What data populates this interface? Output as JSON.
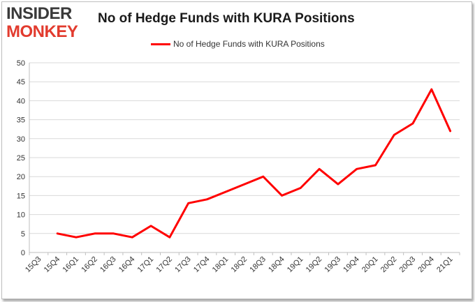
{
  "logo": {
    "line1": "INSIDER",
    "line2": "MONKEY"
  },
  "colors": {
    "line": "#ff0000",
    "grid": "#d9d9d9",
    "axis": "#bfbfbf",
    "logo_accent": "#e23b2e"
  },
  "chart_data": {
    "type": "line",
    "title": "No of Hedge Funds with KURA Positions",
    "xlabel": "",
    "ylabel": "",
    "categories": [
      "15Q3",
      "15Q4",
      "16Q1",
      "16Q2",
      "16Q3",
      "16Q4",
      "17Q1",
      "17Q2",
      "17Q3",
      "17Q4",
      "18Q1",
      "18Q2",
      "18Q3",
      "18Q4",
      "19Q1",
      "19Q2",
      "19Q3",
      "19Q4",
      "20Q1",
      "20Q2",
      "20Q3",
      "20Q4",
      "21Q1"
    ],
    "series": [
      {
        "name": "No of Hedge Funds with KURA Positions",
        "values": [
          null,
          5,
          4,
          5,
          5,
          4,
          7,
          4,
          13,
          14,
          16,
          18,
          20,
          15,
          17,
          22,
          18,
          22,
          23,
          31,
          34,
          43,
          32
        ]
      }
    ],
    "ylim": [
      0,
      50
    ],
    "yticks": [
      0,
      5,
      10,
      15,
      20,
      25,
      30,
      35,
      40,
      45,
      50
    ],
    "grid": true,
    "legend_position": "top-center"
  }
}
